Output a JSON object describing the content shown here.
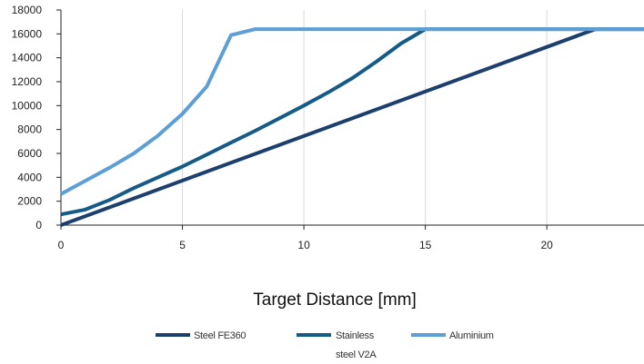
{
  "chart_data": {
    "type": "line",
    "title": "",
    "xlabel": "Target Distance  [mm]",
    "ylabel": "",
    "xlim": [
      0,
      24
    ],
    "ylim": [
      0,
      18000
    ],
    "x_ticks": [
      "0",
      "5",
      "10",
      "15",
      "20"
    ],
    "y_ticks": [
      "0",
      "2000",
      "4000",
      "6000",
      "8000",
      "10000",
      "12000",
      "14000",
      "16000",
      "18000"
    ],
    "grid": "vertical",
    "legend": "bottom",
    "series": [
      {
        "name": "Steel FE360",
        "color": "#1c3f6e",
        "points": [
          [
            0,
            0
          ],
          [
            22,
            16400
          ],
          [
            24,
            16400
          ]
        ]
      },
      {
        "name": "Stainless steel V2A",
        "color": "#155b88",
        "points": [
          [
            0,
            900
          ],
          [
            1,
            1300
          ],
          [
            2,
            2100
          ],
          [
            3,
            3100
          ],
          [
            4,
            4000
          ],
          [
            5,
            4900
          ],
          [
            6,
            5900
          ],
          [
            7,
            6900
          ],
          [
            8,
            7900
          ],
          [
            9,
            8950
          ],
          [
            10,
            10000
          ],
          [
            11,
            11100
          ],
          [
            12,
            12300
          ],
          [
            13,
            13700
          ],
          [
            14,
            15200
          ],
          [
            15,
            16400
          ],
          [
            24,
            16400
          ]
        ]
      },
      {
        "name": "Aluminium",
        "color": "#5b9fd4",
        "points": [
          [
            0,
            2600
          ],
          [
            1,
            3700
          ],
          [
            2,
            4800
          ],
          [
            3,
            6000
          ],
          [
            4,
            7500
          ],
          [
            5,
            9300
          ],
          [
            6,
            11600
          ],
          [
            7,
            15900
          ],
          [
            8,
            16400
          ],
          [
            24,
            16400
          ]
        ]
      }
    ],
    "legend_labels": [
      [
        "Steel FE360"
      ],
      [
        "Stainless",
        "steel V2A"
      ],
      [
        "Aluminium"
      ]
    ]
  }
}
